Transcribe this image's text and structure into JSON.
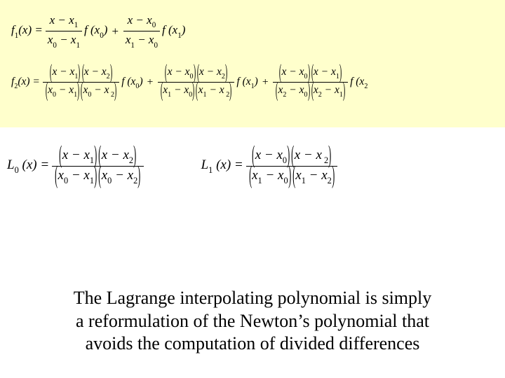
{
  "colors": {
    "highlight_bg": "#ffffcc",
    "page_bg": "#ffffff",
    "text": "#000000"
  },
  "typography": {
    "math_font": "Times New Roman, serif",
    "caption_font": "Times New Roman, serif",
    "caption_fontsize_pt": 20,
    "math_fontsize_pt": 13
  },
  "f1": {
    "lhs": "f",
    "lhs_sub": "1",
    "lhs_paren": "(x) = ",
    "t1_num": "x − x",
    "t1_num_sub": "1",
    "t1_den_a": "x",
    "t1_den_a_sub": "0",
    "t1_den_mid": " − x",
    "t1_den_b_sub": "1",
    "t1_after": " f (x",
    "t1_after_sub": "0",
    "t1_close": ")",
    "plus": "+",
    "t2_num": "x − x",
    "t2_num_sub": "0",
    "t2_den_a": "x",
    "t2_den_a_sub": "1",
    "t2_den_mid": " − x",
    "t2_den_b_sub": "0",
    "t2_after": " f (x",
    "t2_after_sub": "1",
    "t2_close": ")"
  },
  "f2": {
    "lhs": "f",
    "lhs_sub": "2",
    "lhs_paren": "(x) = ",
    "t1_num_a": "x − x",
    "t1_num_a_sub": "1",
    "t1_num_b": "x − x",
    "t1_num_b_sub": "2",
    "t1_den_a1": "x",
    "t1_den_a1_sub": "0",
    "t1_den_a_mid": " − x",
    "t1_den_a2_sub": "1",
    "t1_den_b1": "x",
    "t1_den_b1_sub": "0",
    "t1_den_b_mid": " − x",
    "t1_den_b2_sub": " 2",
    "t1_after": " f (x",
    "t1_after_sub": "0",
    "t1_close": ")",
    "plus12": "+",
    "t2_num_a": "x − x",
    "t2_num_a_sub": "0",
    "t2_num_b": "x − x",
    "t2_num_b_sub": "2",
    "t2_den_a1": "x",
    "t2_den_a1_sub": "1",
    "t2_den_a_mid": " − x",
    "t2_den_a2_sub": "0",
    "t2_den_b1": "x",
    "t2_den_b1_sub": "1",
    "t2_den_b_mid": " − x",
    "t2_den_b2_sub": " 2",
    "t2_after": " f (x",
    "t2_after_sub": "1",
    "t2_close": ")",
    "plus23": "+",
    "t3_num_a": "x − x",
    "t3_num_a_sub": "0",
    "t3_num_b": "x − x",
    "t3_num_b_sub": "1",
    "t3_den_a1": "x",
    "t3_den_a1_sub": "2",
    "t3_den_a_mid": " − x",
    "t3_den_a2_sub": "0",
    "t3_den_b1": "x",
    "t3_den_b1_sub": "2",
    "t3_den_b_mid": " − x",
    "t3_den_b2_sub": "1",
    "t3_after": " f (x",
    "t3_after_sub": "2",
    "t3_close": ""
  },
  "L0": {
    "lhs": "L",
    "lhs_sub": "0",
    "lhs_paren": " (x) = ",
    "num_a": "x − x",
    "num_a_sub": "1",
    "num_b": "x − x",
    "num_b_sub": "2",
    "den_a1": "x",
    "den_a1_sub": "0",
    "den_a_mid": " − x",
    "den_a2_sub": "1",
    "den_b1": "x",
    "den_b1_sub": "0",
    "den_b_mid": " − x",
    "den_b2_sub": "2"
  },
  "L1": {
    "lhs": "L",
    "lhs_sub": "1",
    "lhs_paren": " (x) = ",
    "num_a": "x − x",
    "num_a_sub": "0",
    "num_b": "x − x",
    "num_b_sub": " 2",
    "den_a1": "x",
    "den_a1_sub": "1",
    "den_a_mid": " − x",
    "den_a2_sub": "0",
    "den_b1": "x",
    "den_b1_sub": "1",
    "den_b_mid": " − x",
    "den_b2_sub": "2"
  },
  "caption": {
    "l1": "The Lagrange interpolating polynomial is simply",
    "l2": "a reformulation of the Newton’s polynomial that",
    "l3": "avoids the computation of divided differences"
  }
}
